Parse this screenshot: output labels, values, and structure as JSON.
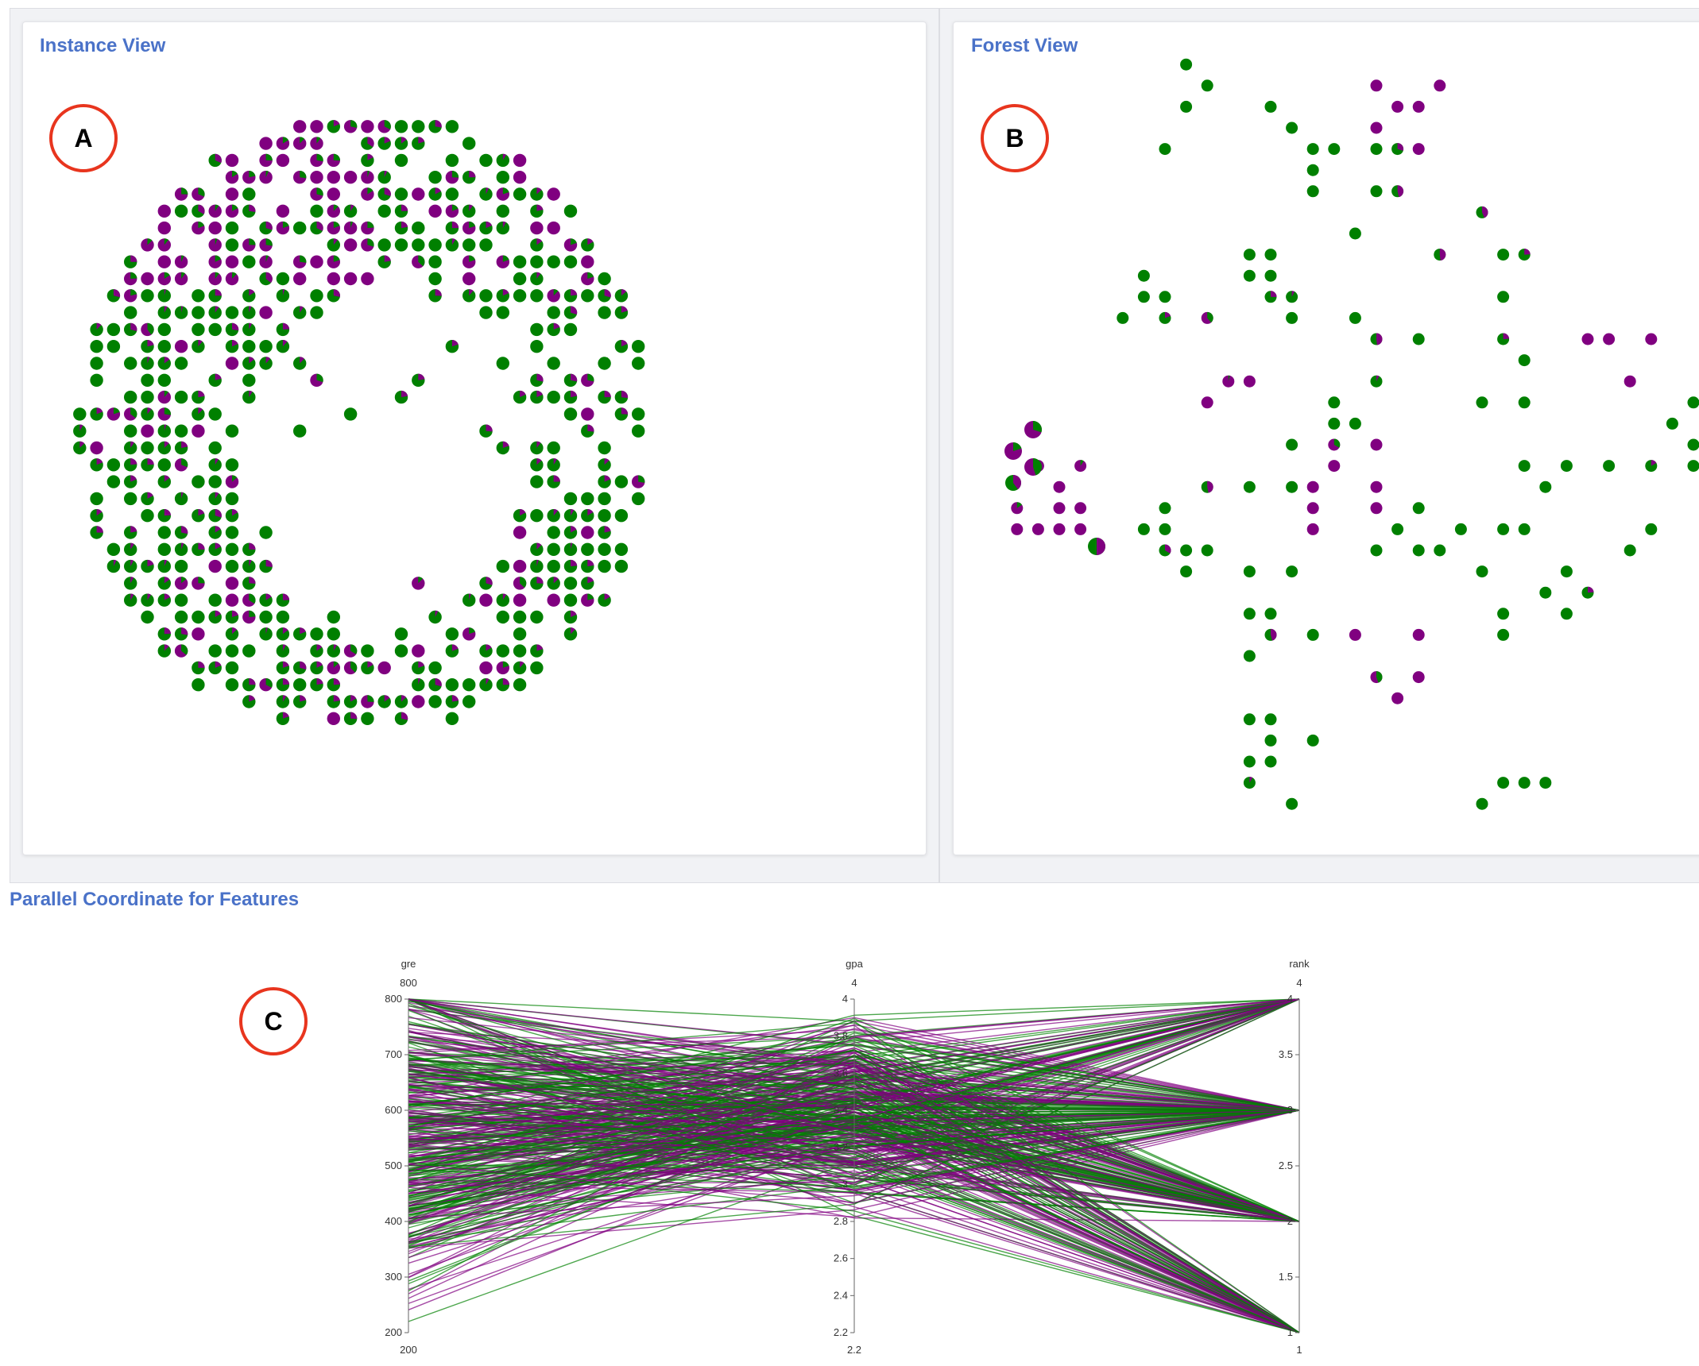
{
  "instance_view": {
    "title": "Instance View",
    "marker": "A"
  },
  "forest_view": {
    "title": "Forest View",
    "marker": "B"
  },
  "parallel_coords": {
    "title": "Parallel Coordinate for Features",
    "marker": "C",
    "colors": {
      "admitted": "#008000",
      "rejected": "#800080"
    },
    "axes": [
      {
        "name": "gre",
        "min": 200,
        "max": 800,
        "top_label": "800",
        "bottom_label": "200",
        "ticks": [
          "800",
          "700",
          "600",
          "500",
          "400",
          "300",
          "200"
        ]
      },
      {
        "name": "gpa",
        "min": 2.2,
        "max": 4,
        "top_label": "4",
        "bottom_label": "2.2",
        "ticks": [
          "4",
          "3.8",
          "3.6",
          "3.4",
          "3.2",
          "3",
          "2.8",
          "2.6",
          "2.4",
          "2.2"
        ]
      },
      {
        "name": "rank",
        "min": 1,
        "max": 4,
        "top_label": "4",
        "bottom_label": "1",
        "ticks": [
          "4",
          "3.5",
          "3",
          "2.5",
          "2",
          "1.5",
          "1"
        ]
      }
    ]
  },
  "colors": {
    "green": "#008000",
    "purple": "#800080",
    "title_blue": "#4a72c8",
    "marker_red": "#e8351e"
  }
}
